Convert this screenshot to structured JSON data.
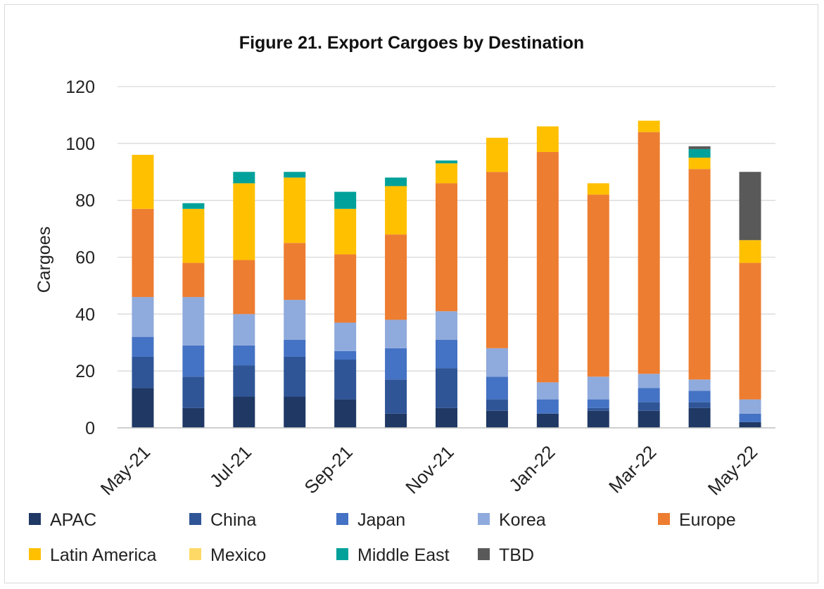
{
  "chart_data": {
    "type": "bar",
    "stacked": true,
    "title": "Figure 21.  Export Cargoes by Destination",
    "xlabel": "",
    "ylabel": "Cargoes",
    "ylim": [
      0,
      120
    ],
    "yticks": [
      0,
      20,
      40,
      60,
      80,
      100,
      120
    ],
    "grid": true,
    "legend_position": "bottom",
    "categories": [
      "May-21",
      "Jun-21",
      "Jul-21",
      "Aug-21",
      "Sep-21",
      "Oct-21",
      "Nov-21",
      "Dec-21",
      "Jan-22",
      "Feb-22",
      "Mar-22",
      "Apr-22",
      "May-22"
    ],
    "xtick_labels": [
      "May-21",
      "",
      "Jul-21",
      "",
      "Sep-21",
      "",
      "Nov-21",
      "",
      "Jan-22",
      "",
      "Mar-22",
      "",
      "May-22"
    ],
    "series": [
      {
        "name": "APAC",
        "color": "#1f3864",
        "values": [
          14,
          7,
          11,
          11,
          10,
          5,
          7,
          6,
          5,
          6,
          6,
          7,
          2
        ]
      },
      {
        "name": "China",
        "color": "#2f5597",
        "values": [
          11,
          11,
          11,
          14,
          14,
          12,
          14,
          4,
          0,
          1,
          3,
          2,
          0
        ]
      },
      {
        "name": "Japan",
        "color": "#4472c4",
        "values": [
          7,
          11,
          7,
          6,
          3,
          11,
          10,
          8,
          5,
          3,
          5,
          4,
          3
        ]
      },
      {
        "name": "Korea",
        "color": "#8faadc",
        "values": [
          14,
          17,
          11,
          14,
          10,
          10,
          10,
          10,
          6,
          8,
          5,
          4,
          5
        ]
      },
      {
        "name": "Europe",
        "color": "#ed7d31",
        "values": [
          31,
          12,
          19,
          20,
          24,
          30,
          45,
          62,
          81,
          64,
          85,
          74,
          48
        ]
      },
      {
        "name": "Latin America",
        "color": "#ffc000",
        "values": [
          19,
          19,
          27,
          23,
          16,
          17,
          7,
          12,
          9,
          4,
          4,
          4,
          8
        ]
      },
      {
        "name": "Mexico",
        "color": "#ffd966",
        "values": [
          0,
          0,
          0,
          0,
          0,
          0,
          0,
          0,
          0,
          0,
          0,
          0,
          0
        ]
      },
      {
        "name": "Middle East",
        "color": "#00a19a",
        "values": [
          0,
          2,
          4,
          2,
          6,
          3,
          1,
          0,
          0,
          0,
          0,
          3,
          0
        ]
      },
      {
        "name": "TBD",
        "color": "#595959",
        "values": [
          0,
          0,
          0,
          0,
          0,
          0,
          0,
          0,
          0,
          0,
          0,
          1,
          24
        ]
      }
    ]
  }
}
